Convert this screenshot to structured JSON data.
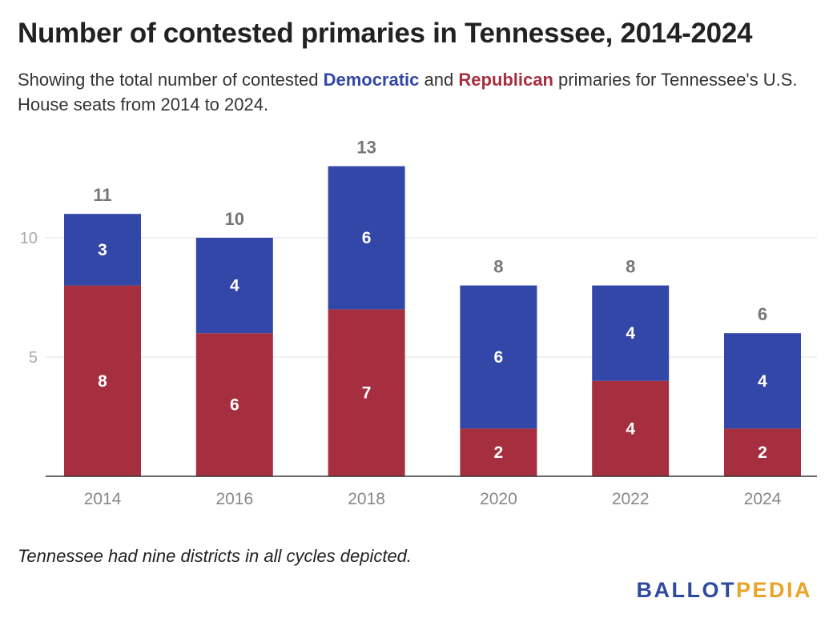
{
  "title": "Number of contested primaries in Tennessee, 2014-2024",
  "subtitle": {
    "pre": "Showing the total number of contested ",
    "dem": "Democratic",
    "mid": " and ",
    "rep": "Republican",
    "post": " primaries for Tennessee's U.S. House seats from 2014 to 2024."
  },
  "note": "Tennessee had nine districts in all cycles depicted.",
  "logo": {
    "part1": "BALLOT",
    "part2": "PEDIA"
  },
  "colors": {
    "democratic": "#3347a8",
    "republican": "#a52f3f",
    "logo_part1": "#2d4a9e",
    "logo_part2": "#e8a427",
    "total_label": "#777777",
    "axis_label": "#888888",
    "grid": "#e2e2e2",
    "baseline": "#333333"
  },
  "chart_data": {
    "type": "bar",
    "stacked": true,
    "categories": [
      "2014",
      "2016",
      "2018",
      "2020",
      "2022",
      "2024"
    ],
    "series": [
      {
        "name": "Republican",
        "values": [
          8,
          6,
          7,
          2,
          4,
          2
        ]
      },
      {
        "name": "Democratic",
        "values": [
          3,
          4,
          6,
          6,
          4,
          4
        ]
      }
    ],
    "totals": [
      11,
      10,
      13,
      8,
      8,
      6
    ],
    "yticks": [
      5,
      10
    ],
    "ylim": [
      0,
      13
    ],
    "grid": true
  }
}
